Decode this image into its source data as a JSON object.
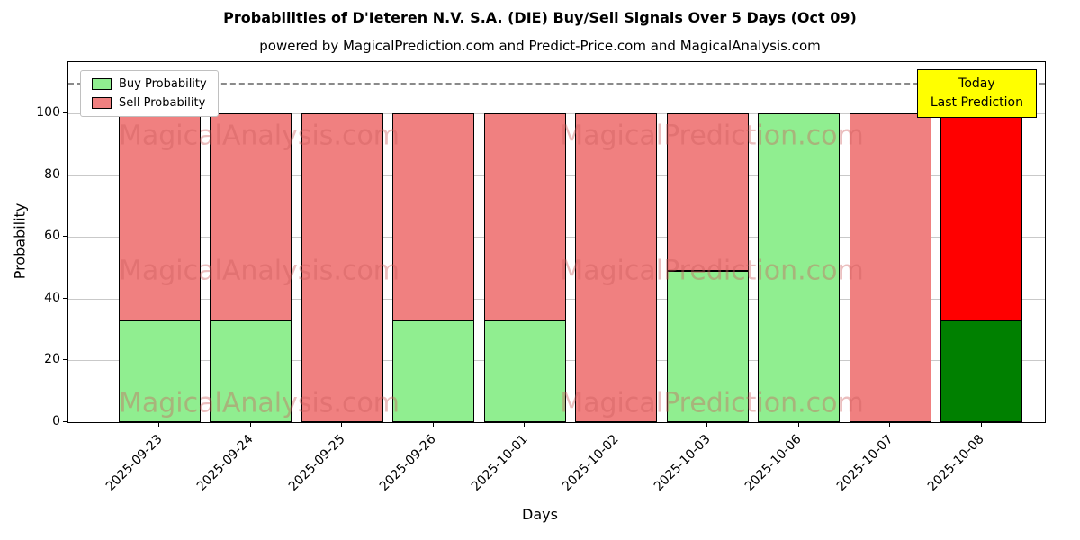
{
  "figure": {
    "title": "Probabilities of D'Ieteren N.V. S.A. (DIE) Buy/Sell Signals Over 5 Days (Oct 09)",
    "subtitle": "powered by MagicalPrediction.com and Predict-Price.com and MagicalAnalysis.com"
  },
  "axes": {
    "x_label": "Days",
    "y_label": "Probability",
    "y_ticks": [
      0,
      20,
      40,
      60,
      80,
      100
    ]
  },
  "legend": {
    "items": [
      {
        "label": "Buy Probability",
        "color": "#90ee90"
      },
      {
        "label": "Sell Probability",
        "color": "#f08080"
      }
    ]
  },
  "annotation": {
    "line1": "Today",
    "line2": "Last Prediction",
    "bg_color": "#ffff00"
  },
  "watermarks": {
    "left_text": "MagicalAnalysis.com",
    "right_text": "MagicalPrediction.com"
  },
  "chart_data": {
    "type": "bar",
    "stacked": true,
    "title": "Probabilities of D'Ieteren N.V. S.A. (DIE) Buy/Sell Signals Over 5 Days (Oct 09)",
    "xlabel": "Days",
    "ylabel": "Probability",
    "ylim": [
      0,
      116.7
    ],
    "grid": "horizontal",
    "legend_position": "upper left",
    "categories": [
      "2025-09-23",
      "2025-09-24",
      "2025-09-25",
      "2025-09-26",
      "2025-10-01",
      "2025-10-02",
      "2025-10-03",
      "2025-10-06",
      "2025-10-07",
      "2025-10-08"
    ],
    "series": [
      {
        "name": "Buy Probability",
        "color": "#90ee90",
        "values": [
          33,
          33,
          0,
          33,
          33,
          0,
          49,
          100,
          0,
          33
        ]
      },
      {
        "name": "Sell Probability",
        "color": "#f08080",
        "values": [
          67,
          67,
          100,
          67,
          67,
          100,
          51,
          0,
          100,
          67
        ]
      }
    ],
    "today_index": 9,
    "today_colors": {
      "buy": "#008000",
      "sell": "#ff0000"
    },
    "dashed_line_y": 110,
    "bar_edge_color": "#000000"
  }
}
